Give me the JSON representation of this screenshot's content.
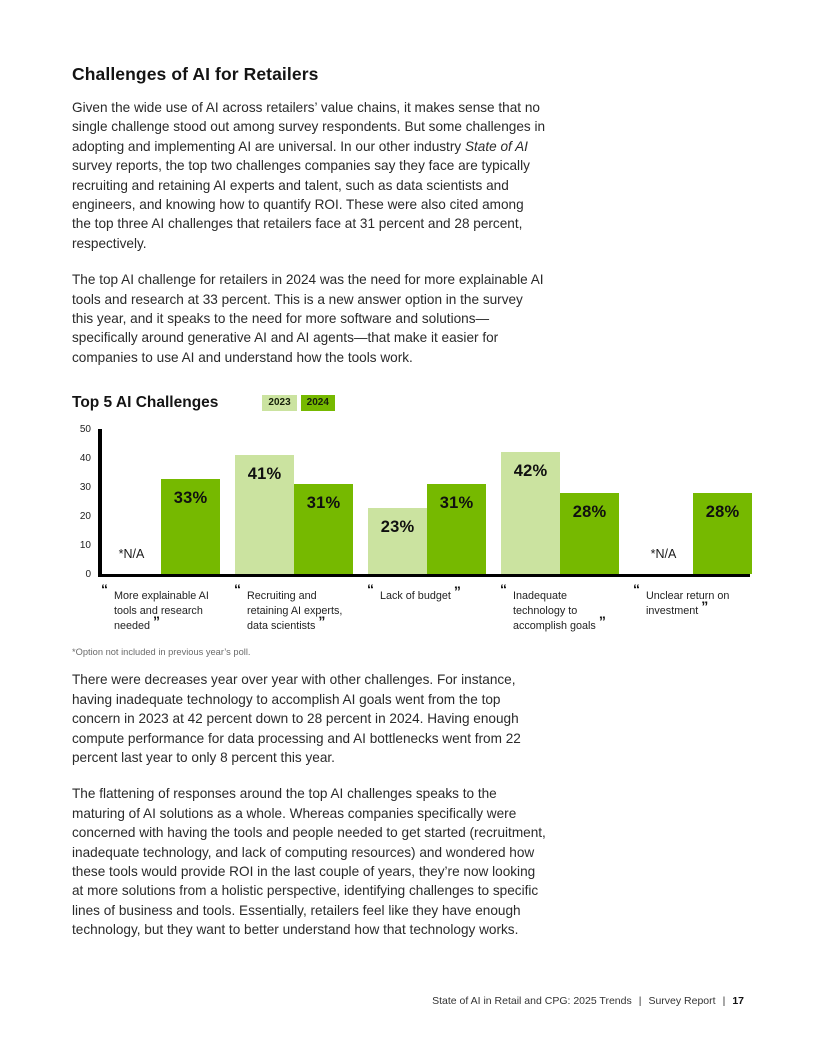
{
  "page": {
    "heading": "Challenges of AI for Retailers",
    "para1_before": "Given the wide use of AI across retailers’ value chains, it makes sense that no single challenge stood out among survey respondents. But some challenges in adopting and implementing AI are universal. In our other industry ",
    "para1_italic": "State of AI",
    "para1_after": " survey reports, the top two challenges companies say they face are typically recruiting and retaining AI experts and talent, such as data scientists and engineers, and knowing how to quantify ROI. These were also cited among the top three AI challenges that retailers face at 31 percent and 28 percent, respectively.",
    "para2": "The top AI challenge for retailers in 2024 was the need for more explainable AI tools and research at 33 percent. This is a new answer option in the survey this year, and it speaks to the need for more software and solutions—specifically around generative AI and AI agents—that make it easier for companies to use AI and understand how the tools work.",
    "para3": "There were decreases year over year with other challenges. For instance, having inadequate technology to accomplish AI goals went from the top concern in 2023 at 42 percent down to 28 percent in 2024. Having enough compute performance for data processing and AI bottlenecks went from 22 percent last year to only 8 percent this year.",
    "para4": "The flattening of responses around the top AI challenges speaks to the maturing of AI solutions as a whole. Whereas companies specifically were concerned with having the tools and people needed to get started (recruitment, inadequate technology, and lack of computing resources) and wondered how these tools would provide ROI in the last couple of years, they’re now looking at more solutions from a holistic perspective, identifying challenges to specific lines of business and tools. Essentially, retailers feel like they have enough technology, but they want to better understand how that technology works.",
    "footnote": "*Option not included in previous year’s poll."
  },
  "chart": {
    "title": "Top 5 AI Challenges",
    "quote_open": "“",
    "quote_close": "”"
  },
  "chart_data": {
    "type": "bar",
    "title": "Top 5 AI Challenges",
    "categories": [
      "More explainable AI tools and research needed",
      "Recruiting and retaining AI experts, data scientists",
      "Lack of budget",
      "Inadequate technology to accomplish goals",
      "Unclear return on investment"
    ],
    "series": [
      {
        "name": "2023",
        "color": "#cbe3a0",
        "values": [
          null,
          41,
          23,
          42,
          null
        ]
      },
      {
        "name": "2024",
        "color": "#76b900",
        "values": [
          33,
          31,
          31,
          28,
          28
        ]
      }
    ],
    "na_label": "*N/A",
    "value_suffix": "%",
    "ylim": [
      0,
      50
    ],
    "yticks": [
      0,
      10,
      20,
      30,
      40,
      50
    ],
    "grid": false,
    "legend_position": "right-of-title"
  },
  "footer": {
    "report_title": "State of AI in Retail and CPG: 2025 Trends",
    "separator": "|",
    "section": "Survey Report",
    "page_number": "17"
  }
}
